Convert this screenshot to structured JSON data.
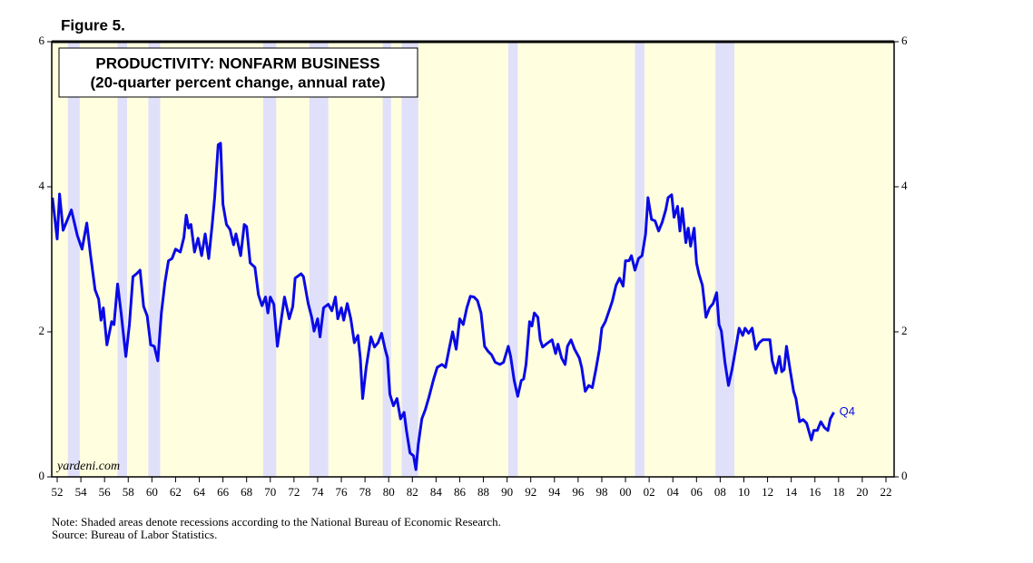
{
  "chart_data": {
    "type": "line",
    "figure_label": "Figure 5.",
    "title": "PRODUCTIVITY: NONFARM BUSINESS",
    "subtitle": "(20-quarter percent change, annual rate)",
    "watermark": "yardeni.com",
    "annotation": "Q4",
    "note": "Note: Shaded areas denote recessions according to the National Bureau of Economic Research.",
    "source": "Source: Bureau of Labor Statistics.",
    "color": "#0a0ae6",
    "xlim": [
      1951.54,
      2022.69
    ],
    "ylim": [
      0,
      6
    ],
    "yticks": [
      0,
      2,
      4,
      6
    ],
    "xticks": [
      {
        "value": 1952,
        "label": "52"
      },
      {
        "value": 1954,
        "label": "54"
      },
      {
        "value": 1956,
        "label": "56"
      },
      {
        "value": 1958,
        "label": "58"
      },
      {
        "value": 1960,
        "label": "60"
      },
      {
        "value": 1962,
        "label": "62"
      },
      {
        "value": 1964,
        "label": "64"
      },
      {
        "value": 1966,
        "label": "66"
      },
      {
        "value": 1968,
        "label": "68"
      },
      {
        "value": 1970,
        "label": "70"
      },
      {
        "value": 1972,
        "label": "72"
      },
      {
        "value": 1974,
        "label": "74"
      },
      {
        "value": 1976,
        "label": "76"
      },
      {
        "value": 1978,
        "label": "78"
      },
      {
        "value": 1980,
        "label": "80"
      },
      {
        "value": 1982,
        "label": "82"
      },
      {
        "value": 1984,
        "label": "84"
      },
      {
        "value": 1986,
        "label": "86"
      },
      {
        "value": 1988,
        "label": "88"
      },
      {
        "value": 1990,
        "label": "90"
      },
      {
        "value": 1992,
        "label": "92"
      },
      {
        "value": 1994,
        "label": "94"
      },
      {
        "value": 1996,
        "label": "96"
      },
      {
        "value": 1998,
        "label": "98"
      },
      {
        "value": 2000,
        "label": "00"
      },
      {
        "value": 2002,
        "label": "02"
      },
      {
        "value": 2004,
        "label": "04"
      },
      {
        "value": 2006,
        "label": "06"
      },
      {
        "value": 2008,
        "label": "08"
      },
      {
        "value": 2010,
        "label": "10"
      },
      {
        "value": 2012,
        "label": "12"
      },
      {
        "value": 2014,
        "label": "14"
      },
      {
        "value": 2016,
        "label": "16"
      },
      {
        "value": 2018,
        "label": "18"
      },
      {
        "value": 2020,
        "label": "20"
      },
      {
        "value": 2022,
        "label": "22"
      }
    ],
    "recessions": [
      [
        1952.9,
        1953.9
      ],
      [
        1957.1,
        1957.9
      ],
      [
        1959.7,
        1960.7
      ],
      [
        1969.4,
        1970.5
      ],
      [
        1973.3,
        1974.9
      ],
      [
        1979.5,
        1980.2
      ],
      [
        1981.1,
        1982.5
      ],
      [
        1990.1,
        1990.9
      ],
      [
        2000.8,
        2001.6
      ],
      [
        2007.6,
        2009.2
      ]
    ],
    "recession_color": "#e0e0fa",
    "background_color": "#ffffe0",
    "x": [
      1951.6,
      1952.0,
      1952.2,
      1952.5,
      1953.2,
      1953.7,
      1954.1,
      1954.5,
      1954.8,
      1955.2,
      1955.5,
      1955.7,
      1955.9,
      1956.2,
      1956.6,
      1956.8,
      1957.1,
      1957.4,
      1957.8,
      1958.1,
      1958.4,
      1958.7,
      1959.0,
      1959.3,
      1959.6,
      1959.9,
      1960.2,
      1960.5,
      1960.8,
      1961.1,
      1961.4,
      1961.7,
      1962.0,
      1962.4,
      1962.7,
      1962.9,
      1963.1,
      1963.3,
      1963.6,
      1963.9,
      1964.2,
      1964.5,
      1964.8,
      1965.1,
      1965.3,
      1965.6,
      1965.8,
      1966.0,
      1966.3,
      1966.6,
      1966.9,
      1967.1,
      1967.5,
      1967.8,
      1968.0,
      1968.3,
      1968.7,
      1969.0,
      1969.3,
      1969.6,
      1969.8,
      1970.0,
      1970.3,
      1970.6,
      1970.9,
      1971.2,
      1971.6,
      1971.9,
      1972.1,
      1972.6,
      1972.8,
      1973.2,
      1973.5,
      1973.7,
      1974.0,
      1974.2,
      1974.5,
      1974.9,
      1975.2,
      1975.5,
      1975.7,
      1976.0,
      1976.2,
      1976.5,
      1976.8,
      1977.1,
      1977.4,
      1977.6,
      1977.8,
      1978.1,
      1978.5,
      1978.8,
      1979.1,
      1979.4,
      1979.7,
      1979.9,
      1980.1,
      1980.4,
      1980.7,
      1981.0,
      1981.3,
      1981.5,
      1981.8,
      1982.1,
      1982.3,
      1982.5,
      1982.8,
      1983.1,
      1983.4,
      1983.8,
      1984.1,
      1984.5,
      1984.8,
      1985.1,
      1985.4,
      1985.7,
      1986.0,
      1986.3,
      1986.6,
      1986.9,
      1987.2,
      1987.5,
      1987.8,
      1988.1,
      1988.4,
      1988.7,
      1989.0,
      1989.4,
      1989.7,
      1990.1,
      1990.3,
      1990.6,
      1990.9,
      1991.2,
      1991.4,
      1991.6,
      1991.9,
      1992.1,
      1992.3,
      1992.6,
      1992.8,
      1993.0,
      1993.3,
      1993.8,
      1994.1,
      1994.3,
      1994.6,
      1994.9,
      1995.1,
      1995.4,
      1995.7,
      1996.1,
      1996.3,
      1996.6,
      1996.9,
      1997.2,
      1997.5,
      1997.8,
      1998.0,
      1998.3,
      1998.7,
      1998.9,
      1999.2,
      1999.5,
      1999.8,
      2000.0,
      2000.3,
      2000.5,
      2000.8,
      2001.1,
      2001.4,
      2001.7,
      2001.9,
      2002.2,
      2002.5,
      2002.8,
      2003.1,
      2003.4,
      2003.6,
      2003.9,
      2004.1,
      2004.4,
      2004.6,
      2004.8,
      2005.1,
      2005.3,
      2005.5,
      2005.8,
      2006.0,
      2006.2,
      2006.5,
      2006.8,
      2007.1,
      2007.4,
      2007.7,
      2007.9,
      2008.1,
      2008.4,
      2008.7,
      2009.0,
      2009.3,
      2009.6,
      2009.9,
      2010.1,
      2010.4,
      2010.7,
      2011.0,
      2011.3,
      2011.6,
      2012.2,
      2012.4,
      2012.7,
      2013.0,
      2013.2,
      2013.4,
      2013.6,
      2013.9,
      2014.2,
      2014.4,
      2014.7,
      2015.0,
      2015.3,
      2015.7,
      2015.9,
      2016.2,
      2016.5,
      2016.8,
      2017.1,
      2017.3,
      2017.6
    ],
    "values": [
      3.85,
      3.28,
      3.9,
      3.4,
      3.68,
      3.33,
      3.14,
      3.5,
      3.08,
      2.58,
      2.45,
      2.16,
      2.33,
      1.82,
      2.14,
      2.1,
      2.66,
      2.26,
      1.66,
      2.1,
      2.76,
      2.8,
      2.85,
      2.35,
      2.22,
      1.82,
      1.8,
      1.6,
      2.26,
      2.68,
      2.98,
      3.01,
      3.14,
      3.1,
      3.3,
      3.61,
      3.43,
      3.48,
      3.1,
      3.29,
      3.05,
      3.35,
      3.01,
      3.49,
      3.85,
      4.58,
      4.6,
      3.76,
      3.48,
      3.41,
      3.2,
      3.35,
      3.05,
      3.48,
      3.45,
      2.95,
      2.89,
      2.51,
      2.36,
      2.48,
      2.26,
      2.48,
      2.38,
      1.8,
      2.14,
      2.48,
      2.18,
      2.35,
      2.74,
      2.8,
      2.76,
      2.39,
      2.2,
      2.01,
      2.18,
      1.93,
      2.33,
      2.38,
      2.29,
      2.48,
      2.18,
      2.33,
      2.16,
      2.39,
      2.18,
      1.85,
      1.95,
      1.64,
      1.08,
      1.51,
      1.93,
      1.79,
      1.85,
      1.98,
      1.76,
      1.64,
      1.14,
      0.98,
      1.08,
      0.8,
      0.89,
      0.64,
      0.33,
      0.29,
      0.1,
      0.45,
      0.8,
      0.93,
      1.1,
      1.35,
      1.51,
      1.55,
      1.51,
      1.76,
      2.0,
      1.76,
      2.18,
      2.1,
      2.33,
      2.49,
      2.48,
      2.43,
      2.26,
      1.8,
      1.73,
      1.68,
      1.58,
      1.55,
      1.58,
      1.8,
      1.66,
      1.33,
      1.11,
      1.33,
      1.35,
      1.55,
      2.14,
      2.08,
      2.26,
      2.2,
      1.89,
      1.79,
      1.83,
      1.89,
      1.7,
      1.83,
      1.64,
      1.55,
      1.8,
      1.89,
      1.76,
      1.64,
      1.51,
      1.18,
      1.26,
      1.23,
      1.48,
      1.76,
      2.05,
      2.14,
      2.33,
      2.43,
      2.64,
      2.74,
      2.63,
      2.98,
      2.98,
      3.05,
      2.85,
      3.01,
      3.05,
      3.35,
      3.85,
      3.55,
      3.53,
      3.39,
      3.51,
      3.68,
      3.85,
      3.89,
      3.58,
      3.73,
      3.39,
      3.7,
      3.23,
      3.43,
      3.18,
      3.43,
      2.95,
      2.8,
      2.64,
      2.2,
      2.33,
      2.39,
      2.54,
      2.1,
      2.01,
      1.58,
      1.26,
      1.48,
      1.76,
      2.05,
      1.95,
      2.05,
      1.98,
      2.05,
      1.76,
      1.85,
      1.89,
      1.89,
      1.6,
      1.43,
      1.66,
      1.45,
      1.48,
      1.8,
      1.48,
      1.18,
      1.08,
      0.76,
      0.79,
      0.74,
      0.51,
      0.64,
      0.64,
      0.76,
      0.68,
      0.64,
      0.8,
      0.89
    ]
  }
}
